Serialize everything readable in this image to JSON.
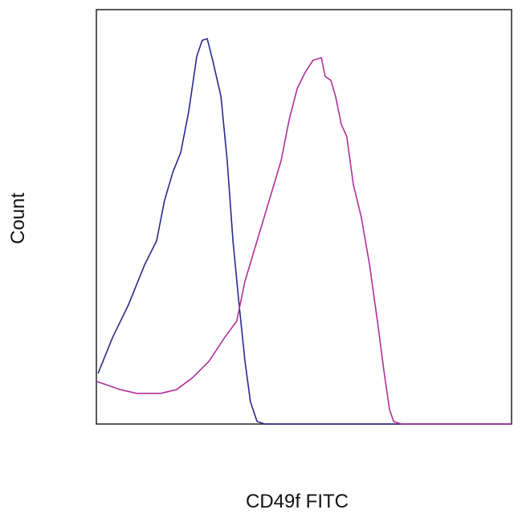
{
  "chart_data": {
    "type": "line",
    "xlabel": "CD49f FITC",
    "ylabel": "Count",
    "xlim": [
      0,
      100
    ],
    "ylim": [
      0,
      100
    ],
    "series": [
      {
        "color": "#2a2a8c",
        "x": [
          0.4,
          3.9,
          7.7,
          11.6,
          14.5,
          16.4,
          18.4,
          20.3,
          22.2,
          24.2,
          25.5,
          26.7,
          28.0,
          30.0,
          31.5,
          32.9,
          34.4,
          35.8,
          37.1,
          38.7,
          40.6,
          100
        ],
        "values": [
          12.2,
          20.9,
          28.7,
          38.4,
          44.2,
          53.9,
          60.7,
          65.5,
          75.2,
          88.8,
          92.6,
          93.0,
          87.8,
          79.1,
          63.6,
          44.2,
          28.7,
          15.1,
          5.4,
          0.6,
          0,
          0
        ]
      },
      {
        "color": "#b0309a",
        "x": [
          0,
          2.9,
          5.8,
          9.7,
          15.5,
          19.3,
          23.2,
          27.1,
          30.9,
          33.8,
          35.8,
          38.7,
          41.6,
          44.5,
          46.4,
          48.4,
          50.3,
          52.2,
          54.2,
          55.1,
          56.5,
          57.6,
          59.0,
          60.3,
          61.9,
          63.8,
          65.8,
          67.7,
          69.2,
          70.6,
          71.6,
          73.5,
          100
        ],
        "values": [
          10.3,
          9.3,
          8.3,
          7.4,
          7.4,
          8.3,
          11.2,
          15.1,
          20.9,
          24.8,
          34.5,
          44.2,
          53.9,
          63.6,
          73.3,
          81.0,
          84.9,
          87.8,
          88.4,
          83.9,
          82.9,
          79.1,
          72.3,
          69.4,
          57.8,
          50.0,
          38.4,
          24.8,
          13.2,
          3.5,
          0.6,
          0,
          0
        ]
      }
    ]
  }
}
